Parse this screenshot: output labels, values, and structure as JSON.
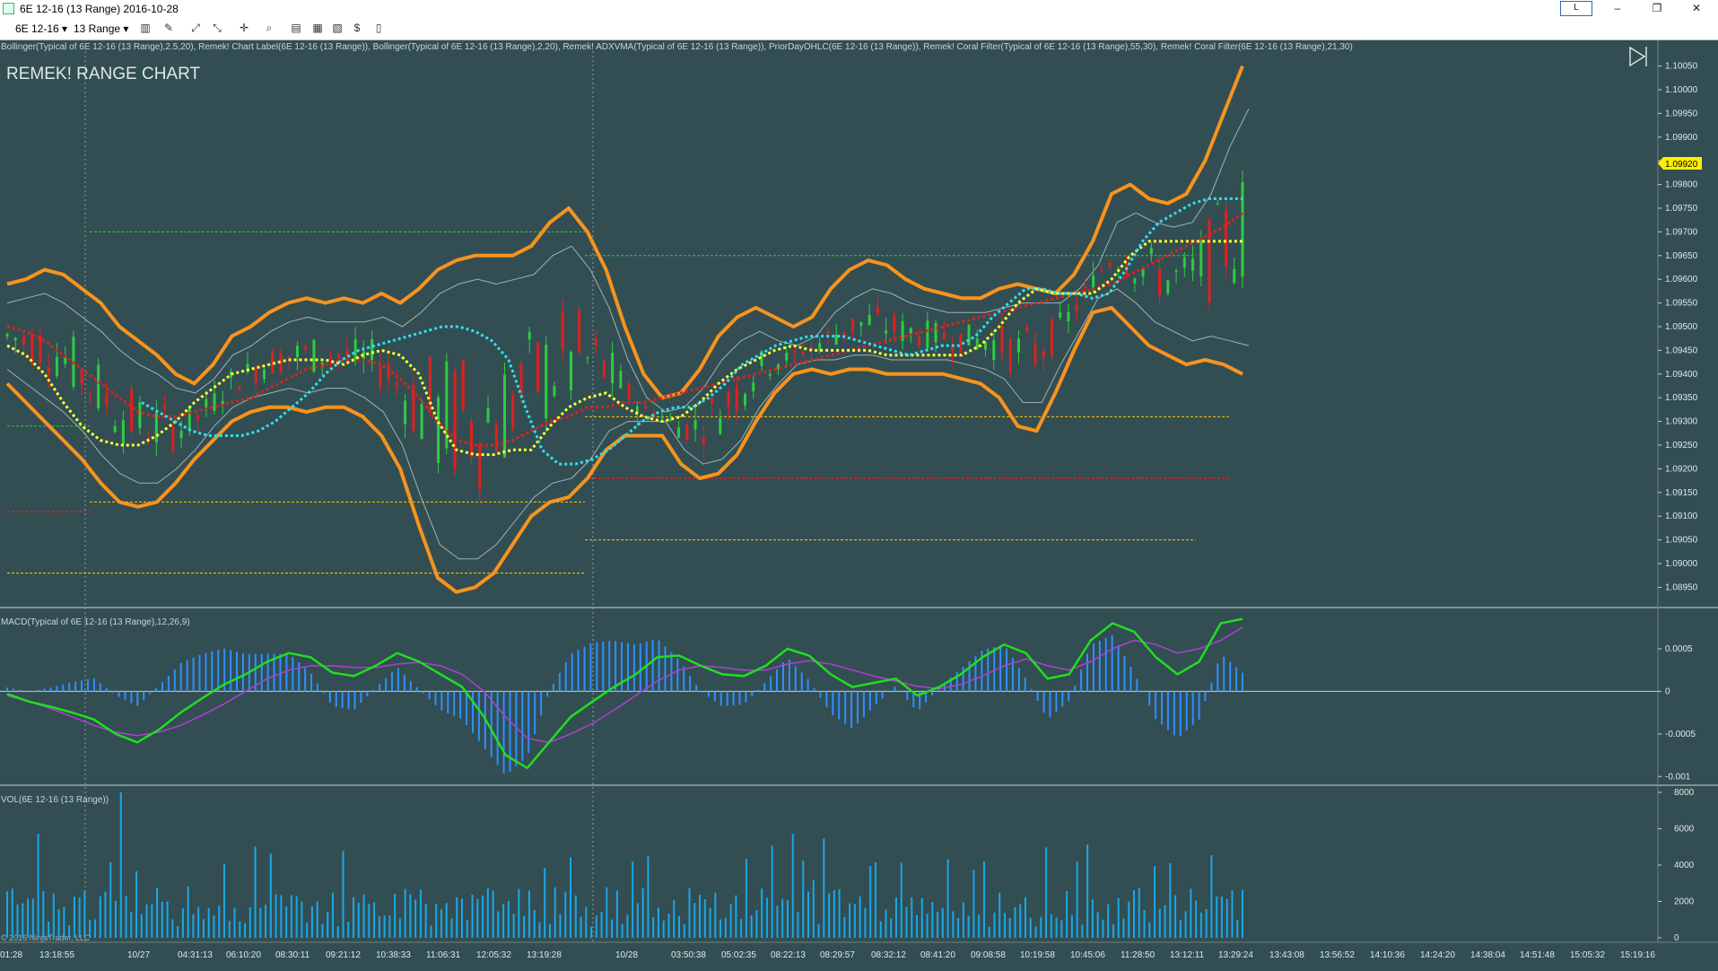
{
  "window": {
    "title": "6E 12-16 (13 Range)  2016-10-28",
    "account_label": "L",
    "minimize": "–",
    "restore": "❐",
    "close": "✕"
  },
  "toolbar": {
    "instrument": "6E 12-16",
    "interval": "13 Range",
    "icons": [
      "bar-type-icon",
      "drawing-tool-icon",
      "indicator-icon",
      "strategy-icon",
      "crosshair-icon",
      "zoom-icon",
      "properties-icon",
      "data-box-icon",
      "template-icon",
      "layout-icon"
    ]
  },
  "price_panel": {
    "indicator_line": "Bollinger(Typical of 6E 12-16 (13 Range),2.5,20), Remek! Chart Label(6E 12-16 (13 Range)), Bollinger(Typical of 6E 12-16 (13 Range),2,20), Remek! ADXVMA(Typical of 6E 12-16 (13 Range)), PriorDayOHLC(6E 12-16 (13 Range)), Remek! Coral Filter(Typical of 6E 12-16 (13 Range),55,30), Remek! Coral Filter(6E 12-16 (13 Range),21,30)",
    "chart_title": "REMEK! RANGE CHART",
    "current_price": "1.09920",
    "axis_labels": [
      "1.10050",
      "1.10000",
      "1.09950",
      "1.09900",
      "1.09850",
      "1.09800",
      "1.09750",
      "1.09700",
      "1.09650",
      "1.09600",
      "1.09550",
      "1.09500",
      "1.09450",
      "1.09400",
      "1.09350",
      "1.09300",
      "1.09250",
      "1.09200",
      "1.09150",
      "1.09100",
      "1.09050",
      "1.09000",
      "1.08950"
    ]
  },
  "macd_panel": {
    "label": "MACD(Typical of 6E 12-16 (13 Range),12,26,9)",
    "axis_labels": [
      "0.0005",
      "0",
      "-0.0005",
      "-0.001"
    ]
  },
  "volume_panel": {
    "label": "VOL(6E 12-16 (13 Range))",
    "axis_labels": [
      "8000",
      "6000",
      "4000",
      "2000",
      "0"
    ],
    "copyright": "© 2016 NinjaTrader, LLC"
  },
  "time_axis": [
    "01:28",
    "13:18:55",
    "10/27",
    "04:31:13",
    "06:10:20",
    "08:30:11",
    "09:21:12",
    "10:38:33",
    "11:06:31",
    "12:05:32",
    "13:19:28",
    "10/28",
    "03:50:38",
    "05:02:35",
    "08:22:13",
    "08:29:57",
    "08:32:12",
    "08:41:20",
    "09:08:58",
    "10:19:58",
    "10:45:06",
    "11:28:50",
    "13:12:11",
    "13:29:24",
    "13:43:08",
    "13:56:52",
    "14:10:36",
    "14:24:20",
    "14:38:04",
    "14:51:48",
    "15:05:32",
    "15:19:16"
  ],
  "colors": {
    "background": "#324e52",
    "outer_band": "#f7931e",
    "inner_band": "#9fb3b5",
    "up_bar": "#2ecc40",
    "down_bar": "#e02020",
    "coral_fast": "#ffff33",
    "coral_slow": "#2fe0f0",
    "adxvma": "#e02020",
    "macd": "#22dd22",
    "macd_signal": "#b040d0",
    "histogram": "#2f8fff",
    "volume": "#1aa7e8",
    "current_price_tag": "#ffee00"
  },
  "chart_data": {
    "type": "candlestick",
    "price_range": [
      1.0893,
      1.1007
    ],
    "macd_range": [
      -0.00105,
      0.0009
    ],
    "volume_range": [
      0,
      8000
    ],
    "outer_upper": [
      1.0959,
      1.096,
      1.0962,
      1.0961,
      1.0958,
      1.0955,
      1.095,
      1.0947,
      1.0944,
      1.094,
      1.0938,
      1.0942,
      1.0948,
      1.095,
      1.0953,
      1.0955,
      1.0956,
      1.0955,
      1.0956,
      1.0955,
      1.0957,
      1.0955,
      1.0958,
      1.0962,
      1.0964,
      1.0965,
      1.0965,
      1.0965,
      1.0967,
      1.0972,
      1.0975,
      1.097,
      1.0962,
      1.095,
      1.094,
      1.0935,
      1.0936,
      1.0941,
      1.0948,
      1.0952,
      1.0954,
      1.0952,
      1.095,
      1.0952,
      1.0958,
      1.0962,
      1.0964,
      1.0963,
      1.096,
      1.0958,
      1.0957,
      1.0956,
      1.0956,
      1.0958,
      1.0959,
      1.0958,
      1.0957,
      1.0961,
      1.0968,
      1.0978,
      1.098,
      1.0977,
      1.0976,
      1.0978,
      1.0985,
      1.0995,
      1.1005
    ],
    "outer_lower": [
      1.0938,
      1.0934,
      1.093,
      1.0926,
      1.0922,
      1.0917,
      1.0913,
      1.0912,
      1.0913,
      1.0917,
      1.0922,
      1.0926,
      1.093,
      1.0932,
      1.0933,
      1.0933,
      1.0932,
      1.0933,
      1.0933,
      1.0931,
      1.0927,
      1.092,
      1.0908,
      1.0897,
      1.0894,
      1.0895,
      1.0898,
      1.0904,
      1.091,
      1.0913,
      1.0914,
      1.0918,
      1.0924,
      1.0927,
      1.0927,
      1.0927,
      1.0921,
      1.0918,
      1.0919,
      1.0923,
      1.093,
      1.0936,
      1.094,
      1.0941,
      1.094,
      1.0941,
      1.0941,
      1.094,
      1.094,
      1.094,
      1.094,
      1.0939,
      1.0938,
      1.0935,
      1.0929,
      1.0928,
      1.0936,
      1.0945,
      1.0953,
      1.0954,
      1.095,
      1.0946,
      1.0944,
      1.0942,
      1.0943,
      1.0942,
      1.094
    ],
    "inner_upper": [
      1.0955,
      1.0956,
      1.0957,
      1.0955,
      1.0952,
      1.0949,
      1.0945,
      1.0942,
      1.094,
      1.0937,
      1.0936,
      1.0939,
      1.0944,
      1.0946,
      1.0949,
      1.0951,
      1.0952,
      1.0951,
      1.0951,
      1.0951,
      1.0952,
      1.095,
      1.0953,
      1.0957,
      1.0959,
      1.096,
      1.0959,
      1.096,
      1.0961,
      1.0965,
      1.0967,
      1.0962,
      1.0954,
      1.0943,
      1.0935,
      1.0932,
      1.0933,
      1.0937,
      1.0943,
      1.0947,
      1.0949,
      1.0947,
      1.0946,
      1.0948,
      1.0953,
      1.0956,
      1.0958,
      1.0957,
      1.0955,
      1.0954,
      1.0953,
      1.0953,
      1.0953,
      1.0954,
      1.0955,
      1.0955,
      1.0955,
      1.0958,
      1.0963,
      1.0972,
      1.0974,
      1.0972,
      1.0971,
      1.0972,
      1.0978,
      1.0988,
      1.0996
    ],
    "inner_lower": [
      1.0941,
      1.0938,
      1.0935,
      1.0932,
      1.0928,
      1.0923,
      1.0919,
      1.0917,
      1.0917,
      1.092,
      1.0924,
      1.0929,
      1.0933,
      1.0935,
      1.0936,
      1.0937,
      1.0936,
      1.0937,
      1.0937,
      1.0935,
      1.0932,
      1.0925,
      1.0914,
      1.0904,
      1.0901,
      1.0901,
      1.0904,
      1.0909,
      1.0914,
      1.0917,
      1.0918,
      1.0922,
      1.0928,
      1.093,
      1.093,
      1.093,
      1.0924,
      1.0921,
      1.0922,
      1.0926,
      1.0933,
      1.0938,
      1.0942,
      1.0943,
      1.0943,
      1.0944,
      1.0944,
      1.0943,
      1.0943,
      1.0943,
      1.0943,
      1.0942,
      1.0941,
      1.0939,
      1.0934,
      1.0934,
      1.0942,
      1.0949,
      1.0956,
      1.0958,
      1.0955,
      1.0951,
      1.0949,
      1.0947,
      1.0948,
      1.0947,
      1.0946
    ],
    "coral_fast": [
      1.0946,
      1.0944,
      1.094,
      1.0934,
      1.0929,
      1.0926,
      1.0925,
      1.0925,
      1.0927,
      1.093,
      1.0934,
      1.0937,
      1.094,
      1.0941,
      1.0942,
      1.0943,
      1.0943,
      1.0943,
      1.0942,
      1.0944,
      1.0945,
      1.0944,
      1.094,
      1.093,
      1.0924,
      1.0923,
      1.0923,
      1.0924,
      1.0924,
      1.0929,
      1.0933,
      1.0935,
      1.0936,
      1.0933,
      1.0931,
      1.093,
      1.0931,
      1.0934,
      1.0938,
      1.0941,
      1.0943,
      1.0945,
      1.0946,
      1.0945,
      1.0945,
      1.0945,
      1.0945,
      1.0944,
      1.0944,
      1.0944,
      1.0944,
      1.0944,
      1.0946,
      1.095,
      1.0955,
      1.0958,
      1.0957,
      1.0957,
      1.0957,
      1.096,
      1.0965,
      1.0968,
      1.0968,
      1.0968,
      1.0968,
      1.0968,
      1.0968
    ],
    "coral_slow": [
      1.0934,
      1.0932,
      1.093,
      1.0928,
      1.0927,
      1.0927,
      1.0927,
      1.0928,
      1.093,
      1.0933,
      1.0936,
      1.094,
      1.0943,
      1.0945,
      1.0946,
      1.0947,
      1.0948,
      1.0949,
      1.095,
      1.095,
      1.0949,
      1.0947,
      1.0943,
      1.0933,
      1.0924,
      1.0921,
      1.0921,
      1.0922,
      1.0924,
      1.0927,
      1.093,
      1.0932,
      1.0933,
      1.0933,
      1.0935,
      1.0938,
      1.0942,
      1.0944,
      1.0946,
      1.0947,
      1.0948,
      1.0948,
      1.0948,
      1.0947,
      1.0946,
      1.0945,
      1.0944,
      1.0945,
      1.0946,
      1.0946,
      1.0948,
      1.0952,
      1.0955,
      1.0958,
      1.0958,
      1.0957,
      1.0957,
      1.0956,
      1.0957,
      1.0962,
      1.0968,
      1.0972,
      1.0974,
      1.0976,
      1.0977,
      1.0977,
      1.0977
    ],
    "ma_long": [
      1.095,
      1.0949,
      1.0947,
      1.0944,
      1.0941,
      1.0938,
      1.0935,
      1.0932,
      1.0931,
      1.0931,
      1.0932,
      1.0933,
      1.0934,
      1.0935,
      1.0937,
      1.0939,
      1.0941,
      1.0942,
      1.0943,
      1.0943,
      1.0942,
      1.0939,
      1.0935,
      1.093,
      1.0926,
      1.0925,
      1.0925,
      1.0926,
      1.0928,
      1.093,
      1.0931,
      1.0933,
      1.0933,
      1.0934,
      1.0934,
      1.0935,
      1.0936,
      1.0937,
      1.0938,
      1.0939,
      1.094,
      1.0941,
      1.0942,
      1.0943,
      1.0944,
      1.0945,
      1.0946,
      1.0947,
      1.0948,
      1.0949,
      1.095,
      1.0951,
      1.0952,
      1.0953,
      1.0954,
      1.0955,
      1.0956,
      1.0957,
      1.0958,
      1.0959,
      1.0961,
      1.0963,
      1.0965,
      1.0967,
      1.0969,
      1.0971,
      1.0974
    ],
    "ohlc_levels": [
      {
        "value": 1.097,
        "color": "#2ecc40",
        "from": 0.05,
        "to": 0.35
      },
      {
        "value": 1.0965,
        "color": "#2ecc40",
        "from": 0.35,
        "to": 0.72
      },
      {
        "value": 1.0931,
        "color": "#ffcc00",
        "from": 0.35,
        "to": 0.74
      },
      {
        "value": 1.0918,
        "color": "#e02020",
        "from": 0.35,
        "to": 0.74
      },
      {
        "value": 1.0913,
        "color": "#ffcc00",
        "from": 0.05,
        "to": 0.35
      },
      {
        "value": 1.0911,
        "color": "#e02020",
        "from": 0.0,
        "to": 0.05
      },
      {
        "value": 1.0905,
        "color": "#ffcc00",
        "from": 0.35,
        "to": 0.72
      },
      {
        "value": 1.0898,
        "color": "#ffcc00",
        "from": 0.0,
        "to": 0.35
      },
      {
        "value": 1.0929,
        "color": "#2ecc40",
        "from": 0.0,
        "to": 0.05
      }
    ],
    "macd": [
      -3e-05,
      -0.00012,
      -0.00018,
      -0.00025,
      -0.00033,
      -0.0005,
      -0.0006,
      -0.00045,
      -0.00025,
      -8e-05,
      8e-05,
      0.0002,
      0.00035,
      0.00045,
      0.0004,
      0.00022,
      0.00018,
      0.0003,
      0.00045,
      0.00035,
      0.0002,
      5e-05,
      -0.0003,
      -0.00075,
      -0.0009,
      -0.0006,
      -0.0003,
      -0.00012,
      5e-05,
      0.0002,
      0.0004,
      0.00042,
      0.0003,
      0.0002,
      0.00018,
      0.0003,
      0.0005,
      0.00042,
      0.0002,
      5e-05,
      0.0001,
      0.00015,
      -5e-05,
      5e-05,
      0.0002,
      0.0004,
      0.00055,
      0.00045,
      0.00015,
      0.0002,
      0.0006,
      0.0008,
      0.0007,
      0.0004,
      0.0002,
      0.00035,
      0.0008,
      0.00085
    ],
    "macd_signal": [
      -5e-05,
      -0.00012,
      -0.0002,
      -0.0003,
      -0.0004,
      -0.00048,
      -0.00052,
      -0.00048,
      -0.0004,
      -0.00028,
      -0.00015,
      0.0,
      0.00015,
      0.00025,
      0.0003,
      0.0003,
      0.00028,
      0.00028,
      0.00032,
      0.00034,
      0.0003,
      0.0002,
      0.0,
      -0.0003,
      -0.00055,
      -0.0006,
      -0.0005,
      -0.00038,
      -0.00022,
      -5e-05,
      0.00012,
      0.00025,
      0.0003,
      0.00028,
      0.00025,
      0.00025,
      0.00032,
      0.00036,
      0.00032,
      0.00025,
      0.00018,
      0.00012,
      6e-05,
      3e-05,
      8e-05,
      0.00018,
      0.0003,
      0.00038,
      0.0003,
      0.00025,
      0.00035,
      0.0005,
      0.0006,
      0.00055,
      0.00045,
      0.0005,
      0.0006,
      0.00075
    ]
  }
}
